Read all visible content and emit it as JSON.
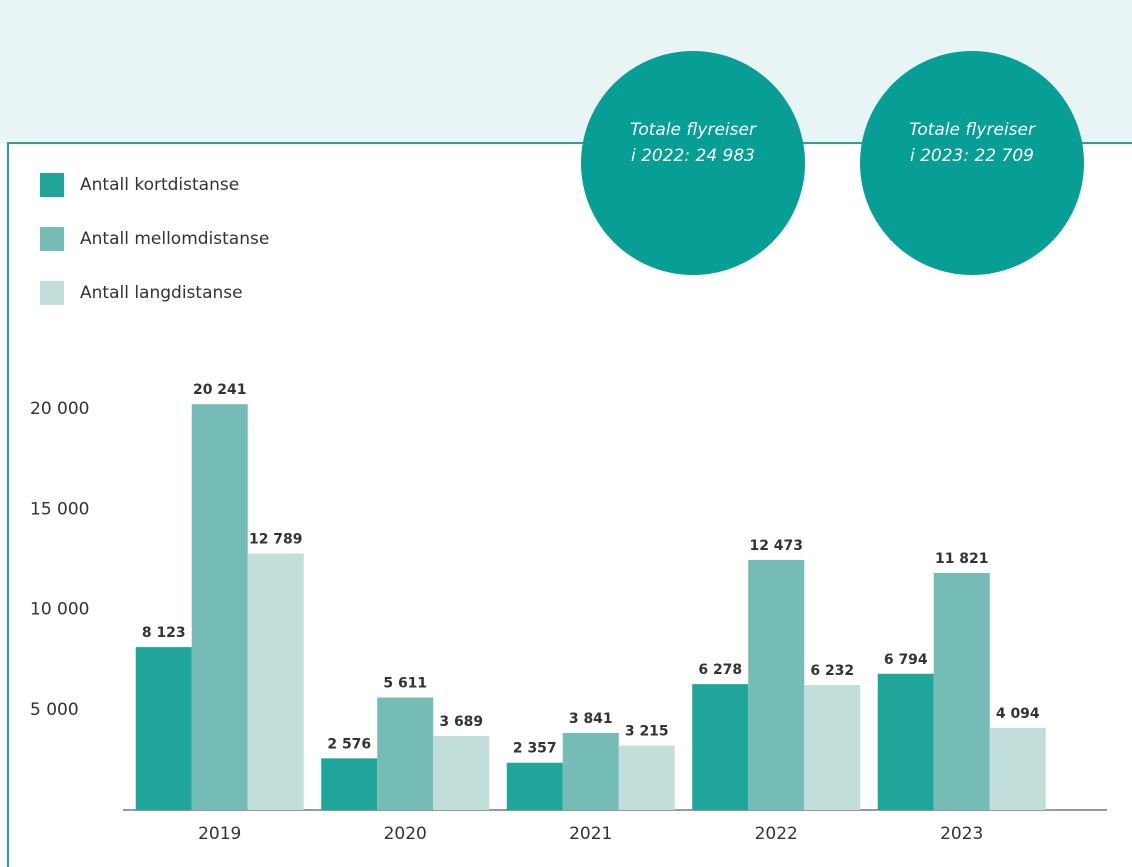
{
  "chart_data": {
    "type": "bar",
    "categories": [
      "2019",
      "2020",
      "2021",
      "2022",
      "2023"
    ],
    "series": [
      {
        "name": "Antall kortdistanse",
        "color": "#1fa599",
        "values": [
          8123,
          2576,
          2357,
          6278,
          6794
        ],
        "value_labels": [
          "8 123",
          "2 576",
          "2 357",
          "6 278",
          "6 794"
        ]
      },
      {
        "name": "Antall mellomdistanse",
        "color": "#74bcb5",
        "values": [
          20241,
          5611,
          3841,
          12473,
          11821
        ],
        "value_labels": [
          "20 241",
          "5 611",
          "3 841",
          "12 473",
          "11 821"
        ]
      },
      {
        "name": "Antall langdistanse",
        "color": "#c2dedb",
        "values": [
          12789,
          3689,
          3215,
          6232,
          4094
        ],
        "value_labels": [
          "12 789",
          "3 689",
          "3 215",
          "6 232",
          "4 094"
        ]
      }
    ],
    "ylim": [
      0,
      20000
    ],
    "yticks": [
      {
        "value": 5000,
        "label": "5 000"
      },
      {
        "value": 10000,
        "label": "10 000"
      },
      {
        "value": 15000,
        "label": "15 000"
      },
      {
        "value": 20000,
        "label": "20 000"
      }
    ],
    "grid": false,
    "legend": "top-left",
    "annotations": [
      {
        "lines": [
          "Totale flyreiser",
          "i 2022: 24 983"
        ],
        "color": "#079e96"
      },
      {
        "lines": [
          "Totale flyreiser",
          "i 2023: 22 709"
        ],
        "color": "#079e96"
      }
    ]
  }
}
